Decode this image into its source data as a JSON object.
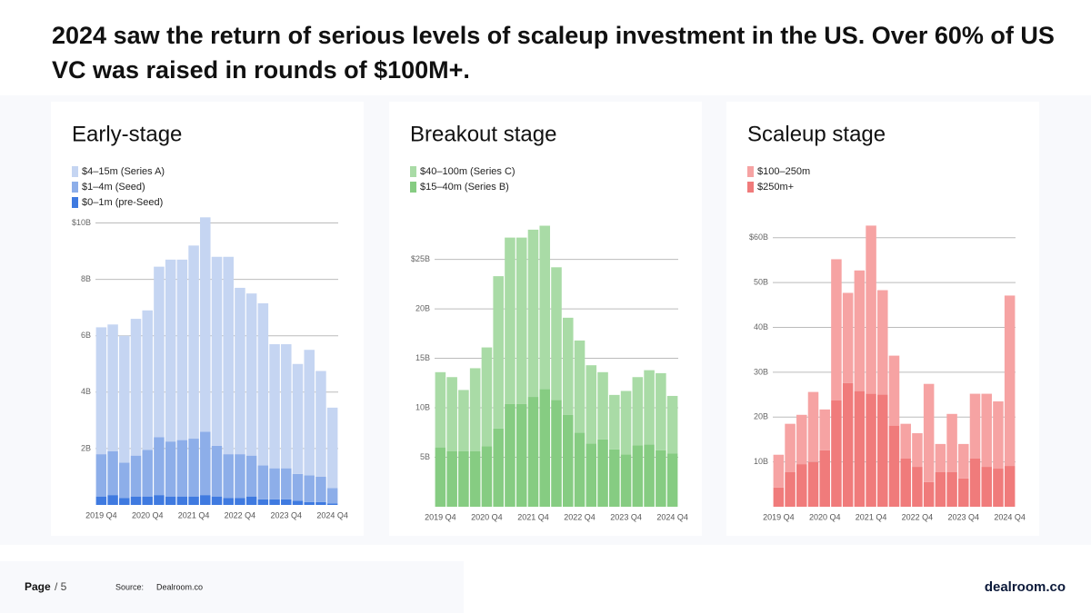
{
  "title": "2024 saw the return of serious levels of scaleup investment in the US. Over 60% of US VC was raised in rounds of $100M+.",
  "chart_data": [
    {
      "type": "stacked-bar",
      "title": "Early-stage",
      "categories": [
        "2019 Q4",
        null,
        null,
        null,
        "2020 Q4",
        null,
        null,
        null,
        "2021 Q4",
        null,
        null,
        null,
        "2022 Q4",
        null,
        null,
        null,
        "2023 Q4",
        null,
        null,
        null,
        "2024 Q4"
      ],
      "series": [
        {
          "name": "$4–15m (Series A)",
          "color": "#c5d5f2",
          "values": [
            4.5,
            4.5,
            4.5,
            4.85,
            4.95,
            6.05,
            6.45,
            6.4,
            6.85,
            7.6,
            6.7,
            7.0,
            5.9,
            5.75,
            5.75,
            4.4,
            4.4,
            3.9,
            4.45,
            3.75,
            2.85
          ]
        },
        {
          "name": "$1–4m (Seed)",
          "color": "#8daee9",
          "values": [
            1.5,
            1.55,
            1.25,
            1.45,
            1.65,
            2.05,
            1.95,
            2.0,
            2.05,
            2.25,
            1.8,
            1.55,
            1.55,
            1.45,
            1.2,
            1.1,
            1.1,
            0.95,
            0.95,
            0.9,
            0.55
          ]
        },
        {
          "name": "$0–1m (pre-Seed)",
          "color": "#3f7ae0",
          "values": [
            0.3,
            0.35,
            0.25,
            0.3,
            0.3,
            0.35,
            0.3,
            0.3,
            0.3,
            0.35,
            0.3,
            0.25,
            0.25,
            0.3,
            0.2,
            0.2,
            0.2,
            0.15,
            0.1,
            0.1,
            0.05
          ]
        }
      ],
      "ylim": [
        0,
        10.5
      ],
      "yticks": [
        {
          "value": 2,
          "label": "2B"
        },
        {
          "value": 4,
          "label": "4B"
        },
        {
          "value": 6,
          "label": "6B"
        },
        {
          "value": 8,
          "label": "8B"
        },
        {
          "value": 10,
          "label": "$10B"
        }
      ],
      "grid": true
    },
    {
      "type": "stacked-bar",
      "title": "Breakout stage",
      "categories": [
        "2019 Q4",
        null,
        null,
        null,
        "2020 Q4",
        null,
        null,
        null,
        "2021 Q4",
        null,
        null,
        null,
        "2022 Q4",
        null,
        null,
        null,
        "2023 Q4",
        null,
        null,
        null,
        "2024 Q4"
      ],
      "series": [
        {
          "name": "$40–100m (Series C)",
          "color": "#a9dba6",
          "values": [
            7.6,
            7.5,
            6.2,
            8.4,
            10.0,
            15.4,
            16.8,
            16.8,
            16.9,
            16.5,
            13.4,
            9.8,
            9.3,
            7.9,
            6.8,
            5.5,
            6.4,
            6.9,
            7.5,
            7.8,
            5.8
          ]
        },
        {
          "name": "$15–40m (Series B)",
          "color": "#86cc82",
          "values": [
            6.0,
            5.6,
            5.6,
            5.6,
            6.1,
            7.9,
            10.4,
            10.4,
            11.1,
            11.9,
            10.8,
            9.3,
            7.5,
            6.4,
            6.8,
            5.8,
            5.3,
            6.2,
            6.3,
            5.7,
            5.4
          ]
        }
      ],
      "ylim": [
        0,
        29
      ],
      "yticks": [
        {
          "value": 5,
          "label": "5B"
        },
        {
          "value": 10,
          "label": "10B"
        },
        {
          "value": 15,
          "label": "15B"
        },
        {
          "value": 20,
          "label": "20B"
        },
        {
          "value": 25,
          "label": "$25B"
        }
      ],
      "grid": true
    },
    {
      "type": "stacked-bar",
      "title": "Scaleup stage",
      "categories": [
        "2019 Q4",
        null,
        null,
        null,
        "2020 Q4",
        null,
        null,
        null,
        "2021 Q4",
        null,
        null,
        null,
        "2022 Q4",
        null,
        null,
        null,
        "2023 Q4",
        null,
        null,
        null,
        "2024 Q4"
      ],
      "series": [
        {
          "name": "$100–250m",
          "color": "#f6a3a3",
          "values": [
            7.3,
            10.8,
            11.0,
            15.6,
            9.1,
            31.5,
            20.1,
            26.9,
            37.5,
            23.3,
            15.6,
            7.7,
            7.5,
            21.9,
            6.3,
            13.0,
            7.7,
            14.4,
            16.3,
            15.0,
            38.0
          ]
        },
        {
          "name": "$250m+",
          "color": "#f07b7b",
          "values": [
            4.3,
            7.7,
            9.5,
            10.0,
            12.6,
            23.7,
            27.6,
            25.8,
            25.2,
            25.0,
            18.1,
            10.8,
            8.9,
            5.5,
            7.7,
            7.7,
            6.3,
            10.8,
            8.9,
            8.5,
            9.1
          ]
        }
      ],
      "ylim": [
        0,
        64
      ],
      "yticks": [
        {
          "value": 10,
          "label": "10B"
        },
        {
          "value": 20,
          "label": "20B"
        },
        {
          "value": 30,
          "label": "30B"
        },
        {
          "value": 40,
          "label": "40B"
        },
        {
          "value": 50,
          "label": "50B"
        },
        {
          "value": 60,
          "label": "$60B"
        }
      ],
      "grid": true
    }
  ],
  "footer": {
    "page": "Page",
    "page_number": "/ 5",
    "source_label": "Source:",
    "source": "Dealroom.co",
    "logo": "dealroom.co"
  }
}
